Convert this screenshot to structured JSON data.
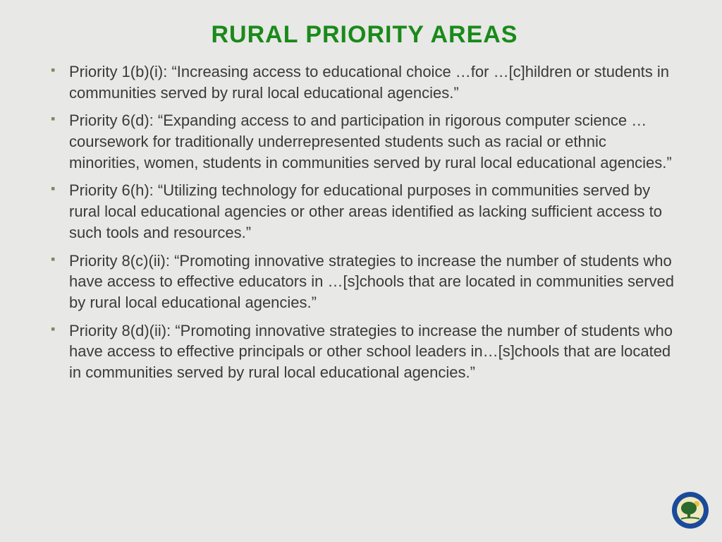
{
  "title": "RURAL PRIORITY AREAS",
  "title_color": "#1a8a1a",
  "title_fontsize": 34,
  "body_color": "#3a3a3a",
  "body_fontsize": 22,
  "line_height": 1.35,
  "bullet_color": "#7a8a5a",
  "background_color": "#e8e8e6",
  "bullets": [
    "Priority 1(b)(i): “Increasing access to educational choice …for …[c]hildren or students in communities served by rural local educational agencies.”",
    "Priority 6(d): “Expanding access to and participation in rigorous computer science …coursework for traditionally underrepresented students such as racial or ethnic minorities, women, students in communities served by rural local educational agencies.”",
    "Priority 6(h): “Utilizing technology for educational purposes in communities served by rural local educational agencies or other areas identified as lacking sufficient access to such tools and resources.”",
    "Priority 8(c)(ii): “Promoting innovative strategies to increase the number of students who have access to effective educators in …[s]chools that are located in communities served by rural local educational agencies.”",
    "Priority 8(d)(ii): “Promoting innovative strategies to increase the number of students who have access to effective principals or other school leaders in…[s]chools that are located in communities served by rural local educational agencies.”"
  ],
  "logo": {
    "outer_ring": "#1a4a9a",
    "inner_bg": "#f0e8c0",
    "tree": "#2a6a2a",
    "sun": "#e8c040"
  }
}
